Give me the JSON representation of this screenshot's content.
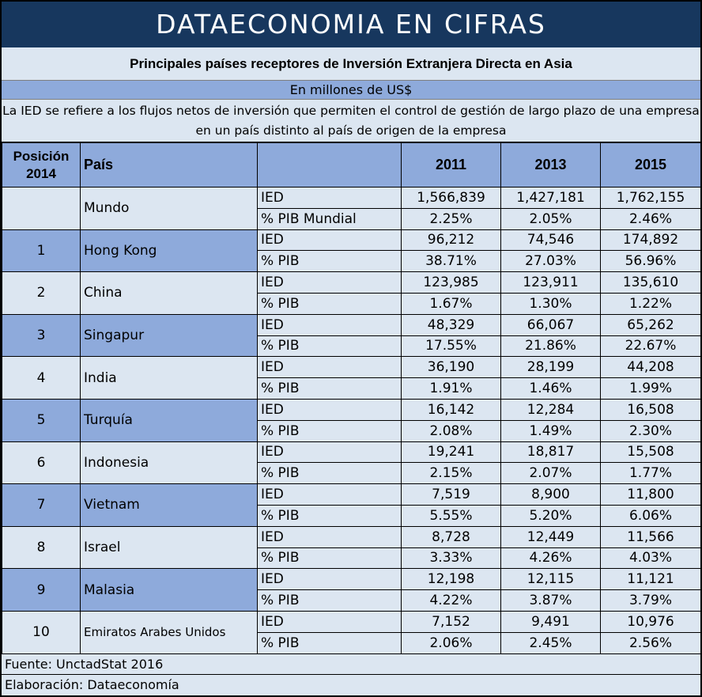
{
  "banner": {
    "title": "DATAECONOMIA EN CIFRAS"
  },
  "subtitle": "Principales países receptores de Inversión Extranjera Directa en Asia",
  "units": "En millones de US$",
  "note": "La IED se refiere a los flujos netos de inversión que permiten el control de gestión de largo plazo de una empresa en un país distinto al país de origen de la empresa",
  "table": {
    "headers": {
      "position_line1": "Posición",
      "position_line2": "2014",
      "country": "País",
      "metric": "",
      "years": [
        "2011",
        "2013",
        "2015"
      ]
    },
    "rows": [
      {
        "position": "",
        "country": "Mundo",
        "ied_label": "IED",
        "ied": [
          "1,566,839",
          "1,427,181",
          "1,762,155"
        ],
        "pib_label": "% PIB Mundial",
        "pib": [
          "2.25%",
          "2.05%",
          "2.46%"
        ]
      },
      {
        "position": "1",
        "country": "Hong Kong",
        "ied_label": "IED",
        "ied": [
          "96,212",
          "74,546",
          "174,892"
        ],
        "pib_label": "% PIB",
        "pib": [
          "38.71%",
          "27.03%",
          "56.96%"
        ]
      },
      {
        "position": "2",
        "country": "China",
        "ied_label": "IED",
        "ied": [
          "123,985",
          "123,911",
          "135,610"
        ],
        "pib_label": "% PIB",
        "pib": [
          "1.67%",
          "1.30%",
          "1.22%"
        ]
      },
      {
        "position": "3",
        "country": "Singapur",
        "ied_label": "IED",
        "ied": [
          "48,329",
          "66,067",
          "65,262"
        ],
        "pib_label": "% PIB",
        "pib": [
          "17.55%",
          "21.86%",
          "22.67%"
        ]
      },
      {
        "position": "4",
        "country": "India",
        "ied_label": "IED",
        "ied": [
          "36,190",
          "28,199",
          "44,208"
        ],
        "pib_label": "% PIB",
        "pib": [
          "1.91%",
          "1.46%",
          "1.99%"
        ]
      },
      {
        "position": "5",
        "country": "Turquía",
        "ied_label": "IED",
        "ied": [
          "16,142",
          "12,284",
          "16,508"
        ],
        "pib_label": "% PIB",
        "pib": [
          "2.08%",
          "1.49%",
          "2.30%"
        ]
      },
      {
        "position": "6",
        "country": "Indonesia",
        "ied_label": "IED",
        "ied": [
          "19,241",
          "18,817",
          "15,508"
        ],
        "pib_label": "% PIB",
        "pib": [
          "2.15%",
          "2.07%",
          "1.77%"
        ]
      },
      {
        "position": "7",
        "country": "Vietnam",
        "ied_label": "IED",
        "ied": [
          "7,519",
          "8,900",
          "11,800"
        ],
        "pib_label": "% PIB",
        "pib": [
          "5.55%",
          "5.20%",
          "6.06%"
        ]
      },
      {
        "position": "8",
        "country": "Israel",
        "ied_label": "IED",
        "ied": [
          "8,728",
          "12,449",
          "11,566"
        ],
        "pib_label": "% PIB",
        "pib": [
          "3.33%",
          "4.26%",
          "4.03%"
        ]
      },
      {
        "position": "9",
        "country": "Malasia",
        "ied_label": "IED",
        "ied": [
          "12,198",
          "12,115",
          "11,121"
        ],
        "pib_label": "% PIB",
        "pib": [
          "4.22%",
          "3.87%",
          "3.79%"
        ]
      },
      {
        "position": "10",
        "country": "Emiratos Arabes Unidos",
        "ied_label": "IED",
        "ied": [
          "7,152",
          "9,491",
          "10,976"
        ],
        "pib_label": "% PIB",
        "pib": [
          "2.06%",
          "2.45%",
          "2.56%"
        ]
      }
    ]
  },
  "footer": {
    "source": "Fuente: UnctadStat 2016",
    "credit": "Elaboración: Dataeconomía"
  },
  "colors": {
    "banner": "#17375e",
    "band_dark": "#8eaadb",
    "band_light": "#dce6f1"
  }
}
